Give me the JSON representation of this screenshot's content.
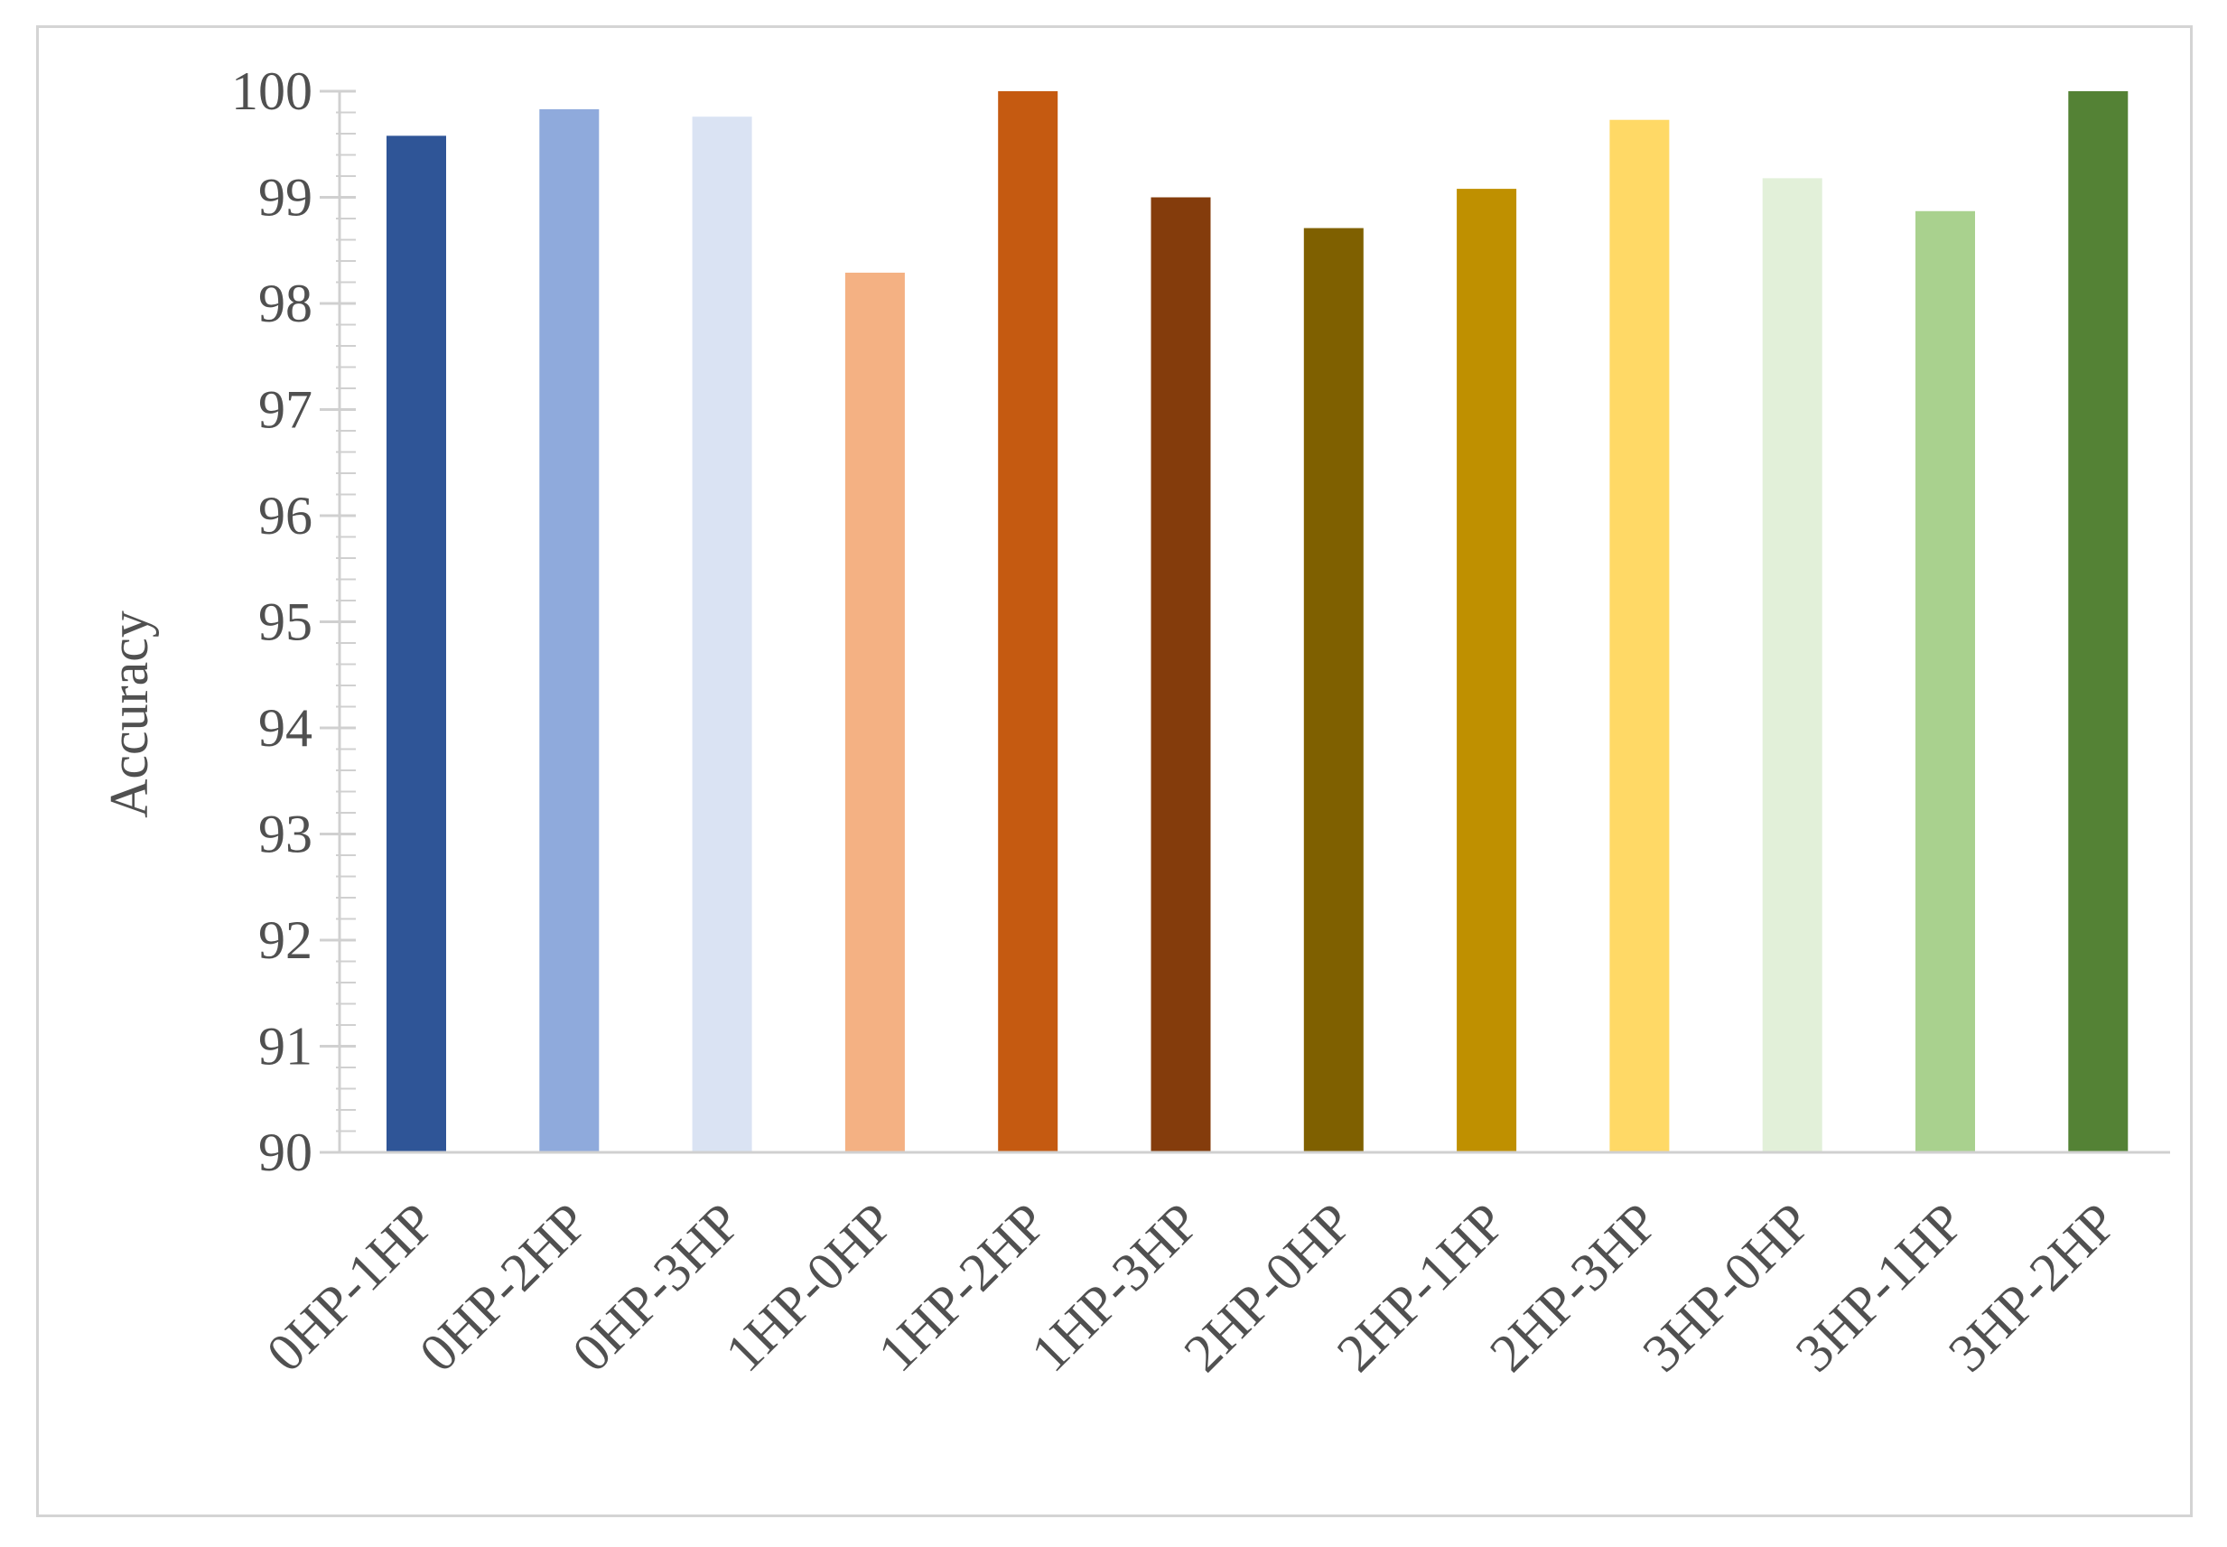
{
  "chart_data": {
    "type": "bar",
    "title": "",
    "xlabel": "",
    "ylabel": "Accuracy",
    "ylim": [
      90,
      100
    ],
    "yticks": [
      90,
      91,
      92,
      93,
      94,
      95,
      96,
      97,
      98,
      99,
      100
    ],
    "grid": false,
    "legend": "none",
    "categories": [
      "0HP-1HP",
      "0HP-2HP",
      "0HP-3HP",
      "1HP-0HP",
      "1HP-2HP",
      "1HP-3HP",
      "2HP-0HP",
      "2HP-1HP",
      "2HP-3HP",
      "3HP-0HP",
      "3HP-1HP",
      "3HP-2HP"
    ],
    "values": [
      99.58,
      99.83,
      99.76,
      98.29,
      100,
      99.0,
      98.71,
      99.08,
      99.73,
      99.18,
      98.87,
      100
    ],
    "colors": [
      "#2f5597",
      "#8faadc",
      "#dae3f3",
      "#f4b183",
      "#c55a11",
      "#843c0c",
      "#7f6000",
      "#bf9000",
      "#ffd966",
      "#e2f0d9",
      "#a9d18e",
      "#548235"
    ],
    "axis_color": "#d0d0d0"
  }
}
